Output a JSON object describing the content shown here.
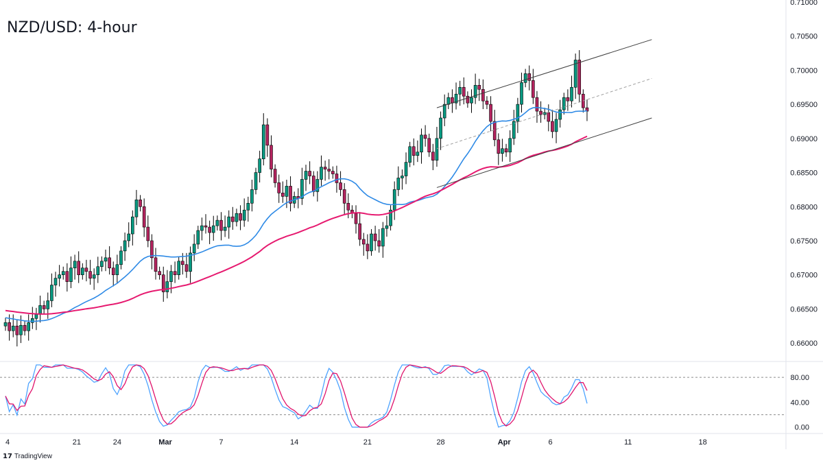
{
  "title": "NZD/USD: 4-hour",
  "logo": {
    "text": "TradingView",
    "icon": "tradingview-logo-icon"
  },
  "colors": {
    "bull": "#089981",
    "bear": "#b4245f",
    "ma100": "#2e8ae6",
    "ma200": "#e6196f",
    "stochK": "#4da3ff",
    "stochD": "#e0136c",
    "channel": "#3d3d3d",
    "midline": "#a0a0a0"
  },
  "chart_data": [
    {
      "type": "candlestick",
      "title": "NZD/USD: 4-hour",
      "x_tick_labels": [
        "4",
        "21",
        "24",
        "Mar",
        "7",
        "14",
        "21",
        "28",
        "Apr",
        "6",
        "11",
        "18"
      ],
      "y_tick_labels": [
        "0.71000",
        "0.70500",
        "0.70000",
        "0.69500",
        "0.69000",
        "0.68500",
        "0.68000",
        "0.67500",
        "0.67000",
        "0.66500",
        "0.66000"
      ],
      "ylim": [
        0.6585,
        0.71
      ],
      "x_count": 150,
      "grid": false,
      "close": [
        0.663,
        0.6618,
        0.6625,
        0.6612,
        0.6626,
        0.6618,
        0.663,
        0.6636,
        0.6642,
        0.6655,
        0.665,
        0.6662,
        0.6685,
        0.6695,
        0.67,
        0.6705,
        0.669,
        0.671,
        0.672,
        0.67,
        0.671,
        0.6705,
        0.6695,
        0.67,
        0.6712,
        0.672,
        0.6725,
        0.671,
        0.67,
        0.6715,
        0.6735,
        0.675,
        0.676,
        0.6785,
        0.681,
        0.68,
        0.677,
        0.675,
        0.6725,
        0.6705,
        0.67,
        0.6675,
        0.669,
        0.6705,
        0.67,
        0.672,
        0.6715,
        0.6705,
        0.6732,
        0.6745,
        0.6765,
        0.6772,
        0.677,
        0.6762,
        0.6772,
        0.678,
        0.6765,
        0.677,
        0.6785,
        0.6778,
        0.679,
        0.678,
        0.6795,
        0.6805,
        0.6825,
        0.685,
        0.687,
        0.692,
        0.689,
        0.6855,
        0.6835,
        0.682,
        0.6815,
        0.683,
        0.6805,
        0.6815,
        0.6812,
        0.684,
        0.6852,
        0.6845,
        0.6822,
        0.684,
        0.6858,
        0.6855,
        0.6852,
        0.6848,
        0.6835,
        0.6825,
        0.6805,
        0.6795,
        0.679,
        0.6775,
        0.6752,
        0.6745,
        0.6735,
        0.676,
        0.675,
        0.6742,
        0.6768,
        0.6772,
        0.6795,
        0.6825,
        0.6842,
        0.6845,
        0.6865,
        0.6888,
        0.6875,
        0.688,
        0.6905,
        0.69,
        0.688,
        0.6868,
        0.69,
        0.693,
        0.695,
        0.696,
        0.6952,
        0.6965,
        0.6975,
        0.6962,
        0.6952,
        0.696,
        0.6978,
        0.6972,
        0.6955,
        0.695,
        0.6925,
        0.6898,
        0.6878,
        0.6885,
        0.688,
        0.69,
        0.6925,
        0.695,
        0.6982,
        0.6995,
        0.6985,
        0.696,
        0.694,
        0.6935,
        0.6938,
        0.6925,
        0.691,
        0.6928,
        0.6942,
        0.696,
        0.6955,
        0.6975,
        0.7015,
        0.6965,
        0.6945,
        0.694
      ],
      "series": [
        {
          "name": "",
          "type": "line",
          "values_from": "moving average, short"
        },
        {
          "name": "",
          "type": "line",
          "values_from": "moving average, long"
        }
      ],
      "channel": {
        "upper": [
          0.6945,
          0.7045
        ],
        "middle": [
          0.6885,
          0.6988
        ],
        "lower": [
          0.6828,
          0.693
        ],
        "start_index": 112,
        "end_index": 150
      }
    },
    {
      "type": "line",
      "y_tick_labels": [
        "80.00",
        "40.00",
        "0.00"
      ],
      "ylim": [
        -8,
        100
      ],
      "levels": [
        80,
        20
      ],
      "series": [
        {
          "name": "",
          "values_from": "stochastic %K"
        },
        {
          "name": "",
          "values_from": "stochastic %D"
        }
      ]
    }
  ]
}
